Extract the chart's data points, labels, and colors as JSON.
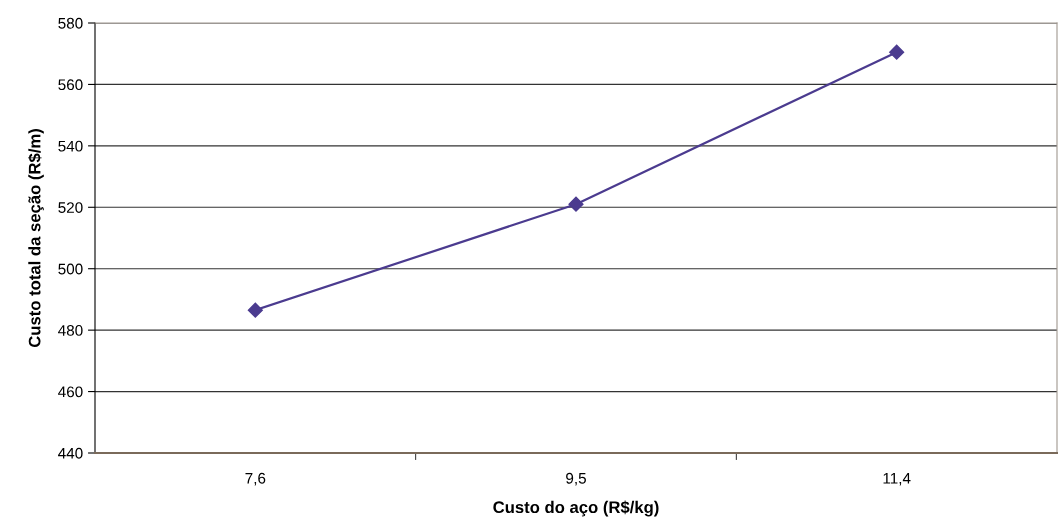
{
  "chart_data": {
    "type": "line",
    "xlabel": "Custo do aço (R$/kg)",
    "ylabel": "Custo total da seção (R$/m)",
    "categories": [
      "7,6",
      "9,5",
      "11,4"
    ],
    "series": [
      {
        "color": "#4b3b8f",
        "values": [
          486.5,
          521,
          570.5
        ]
      }
    ],
    "ylim": [
      440,
      580
    ],
    "yticks": [
      440,
      460,
      480,
      500,
      520,
      540,
      560,
      580
    ],
    "grid": "y",
    "marker": "diamond",
    "line_style": "solid"
  }
}
